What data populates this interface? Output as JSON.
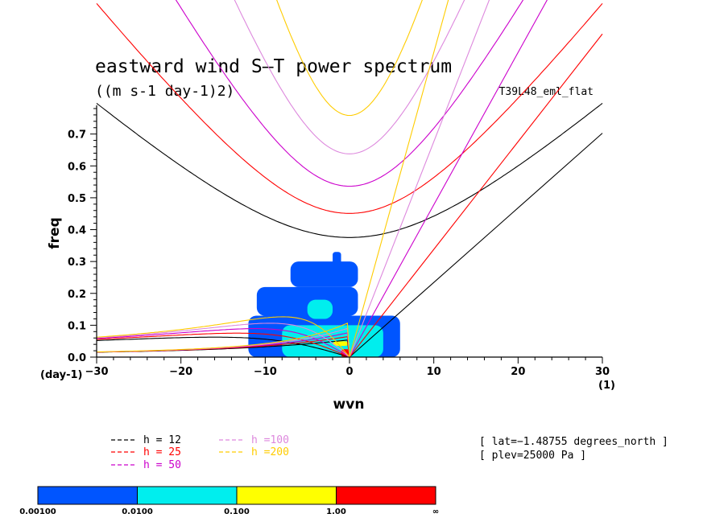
{
  "chart_data": {
    "type": "line",
    "title": "eastward wind S–T power spectrum",
    "subtitle": "((m s-1 day-1)2)",
    "run_label": "T39L48_eml_flat",
    "xlabel": "wvn",
    "ylabel": "freq",
    "x_unit": "(1)",
    "y_unit": "(day-1)",
    "xlim": [
      -30,
      30
    ],
    "ylim": [
      0,
      0.79
    ],
    "x_ticks": [
      -30,
      -20,
      -10,
      0,
      10,
      20,
      30
    ],
    "x_tick_labels": [
      "−30",
      "−20",
      "−10",
      "0",
      "10",
      "20",
      "30"
    ],
    "y_ticks": [
      0.0,
      0.1,
      0.2,
      0.3,
      0.4,
      0.5,
      0.6,
      0.7
    ],
    "y_tick_labels": [
      "0.0",
      "0.1",
      "0.2",
      "0.3",
      "0.4",
      "0.5",
      "0.6",
      "0.7"
    ],
    "dispersion_curves": [
      {
        "label": "h = 12",
        "h": 12,
        "color": "#000000"
      },
      {
        "label": "h = 25",
        "h": 25,
        "color": "#ff0000"
      },
      {
        "label": "h = 50",
        "h": 50,
        "color": "#cc00cc"
      },
      {
        "label": "h =100",
        "h": 100,
        "color": "#dd88dd"
      },
      {
        "label": "h =200",
        "h": 200,
        "color": "#ffcc00"
      }
    ],
    "info_lines": [
      "[ lat=−1.48755 degrees_north ]",
      "[ plev=25000 Pa ]"
    ],
    "colorbar": {
      "colors": [
        "#0055ff",
        "#00eeee",
        "#ffff00",
        "#ff0000"
      ],
      "labels": [
        "0.00100",
        "0.0100",
        "0.100",
        "1.00",
        "∞"
      ]
    },
    "power_blobs": [
      {
        "x": [
          -12,
          6
        ],
        "y": [
          0.0,
          0.13
        ],
        "level": 0
      },
      {
        "x": [
          -11,
          1
        ],
        "y": [
          0.13,
          0.22
        ],
        "level": 0
      },
      {
        "x": [
          -7,
          1
        ],
        "y": [
          0.22,
          0.3
        ],
        "level": 0
      },
      {
        "x": [
          -2,
          -1
        ],
        "y": [
          0.29,
          0.33
        ],
        "level": 0
      },
      {
        "x": [
          -8,
          4
        ],
        "y": [
          0.0,
          0.1
        ],
        "level": 1
      },
      {
        "x": [
          -5,
          -2
        ],
        "y": [
          0.12,
          0.18
        ],
        "level": 1
      },
      {
        "x": [
          -2,
          0
        ],
        "y": [
          0.035,
          0.05
        ],
        "level": 2
      },
      {
        "x": [
          -1,
          0
        ],
        "y": [
          0.0,
          0.025
        ],
        "level": 3
      }
    ]
  }
}
